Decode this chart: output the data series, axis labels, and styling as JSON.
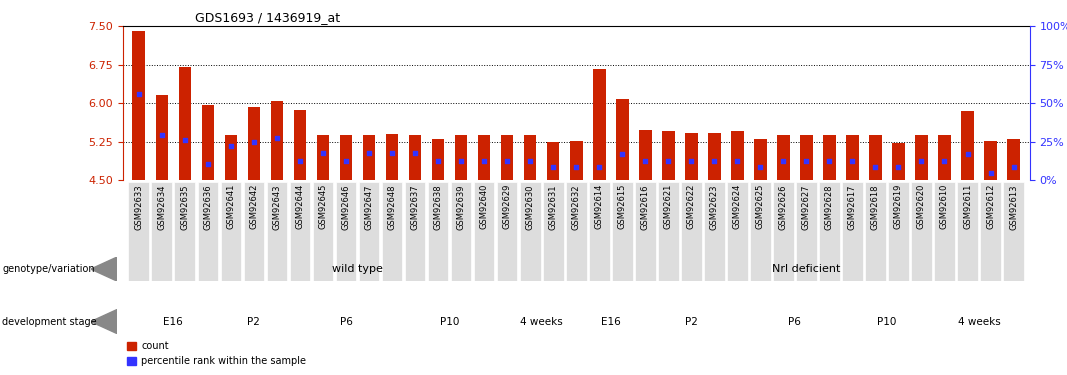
{
  "title": "GDS1693 / 1436919_at",
  "ylim_left": [
    4.5,
    7.5
  ],
  "ylim_right": [
    0,
    100
  ],
  "yticks_left": [
    4.5,
    5.25,
    6.0,
    6.75,
    7.5
  ],
  "yticks_right": [
    0,
    25,
    50,
    75,
    100
  ],
  "bar_color": "#CC2200",
  "dot_color": "#3333FF",
  "bg_color": "#FFFFFF",
  "samples": [
    "GSM92633",
    "GSM92634",
    "GSM92635",
    "GSM92636",
    "GSM92641",
    "GSM92642",
    "GSM92643",
    "GSM92644",
    "GSM92645",
    "GSM92646",
    "GSM92647",
    "GSM92648",
    "GSM92637",
    "GSM92638",
    "GSM92639",
    "GSM92640",
    "GSM92629",
    "GSM92630",
    "GSM92631",
    "GSM92632",
    "GSM92614",
    "GSM92615",
    "GSM92616",
    "GSM92621",
    "GSM92622",
    "GSM92623",
    "GSM92624",
    "GSM92625",
    "GSM92626",
    "GSM92627",
    "GSM92628",
    "GSM92617",
    "GSM92618",
    "GSM92619",
    "GSM92620",
    "GSM92610",
    "GSM92611",
    "GSM92612",
    "GSM92613"
  ],
  "bar_values": [
    7.4,
    6.15,
    6.7,
    5.97,
    5.37,
    5.92,
    6.04,
    5.87,
    5.37,
    5.37,
    5.37,
    5.4,
    5.38,
    5.3,
    5.37,
    5.37,
    5.37,
    5.37,
    5.25,
    5.27,
    6.67,
    6.08,
    5.47,
    5.45,
    5.41,
    5.41,
    5.45,
    5.3,
    5.37,
    5.37,
    5.37,
    5.37,
    5.38,
    5.22,
    5.37,
    5.37,
    5.85,
    5.27,
    5.3
  ],
  "dot_values": [
    6.18,
    5.38,
    5.28,
    4.82,
    5.17,
    5.25,
    5.32,
    4.88,
    5.02,
    4.88,
    5.02,
    5.02,
    5.02,
    4.88,
    4.88,
    4.88,
    4.88,
    4.88,
    4.75,
    4.75,
    4.75,
    5.0,
    4.88,
    4.88,
    4.88,
    4.88,
    4.88,
    4.75,
    4.88,
    4.88,
    4.88,
    4.88,
    4.75,
    4.75,
    4.88,
    4.88,
    5.0,
    4.63,
    4.75
  ],
  "genotype_groups": [
    {
      "label": "wild type",
      "start": 0,
      "end": 20,
      "color": "#BBEEAA"
    },
    {
      "label": "Nrl deficient",
      "start": 20,
      "end": 39,
      "color": "#44DD22"
    }
  ],
  "stage_groups": [
    {
      "label": "E16",
      "start": 0,
      "end": 4,
      "color": "#FFBBDD"
    },
    {
      "label": "P2",
      "start": 4,
      "end": 7,
      "color": "#EE88CC"
    },
    {
      "label": "P6",
      "start": 7,
      "end": 12,
      "color": "#FF99DD"
    },
    {
      "label": "P10",
      "start": 12,
      "end": 16,
      "color": "#EE88CC"
    },
    {
      "label": "4 weeks",
      "start": 16,
      "end": 20,
      "color": "#FF99DD"
    },
    {
      "label": "E16",
      "start": 20,
      "end": 22,
      "color": "#FFBBDD"
    },
    {
      "label": "P2",
      "start": 22,
      "end": 27,
      "color": "#EE88CC"
    },
    {
      "label": "P6",
      "start": 27,
      "end": 31,
      "color": "#FF99DD"
    },
    {
      "label": "P10",
      "start": 31,
      "end": 35,
      "color": "#EE88CC"
    },
    {
      "label": "4 weeks",
      "start": 35,
      "end": 39,
      "color": "#FF99DD"
    }
  ],
  "genotype_label": "genotype/variation",
  "stage_label": "development stage",
  "legend_count_label": "count",
  "legend_percentile_label": "percentile rank within the sample",
  "left_axis_color": "#CC2200",
  "right_axis_color": "#3333FF",
  "grid_color": "#333333",
  "baseline": 4.5,
  "tick_label_bg": "#DDDDDD"
}
